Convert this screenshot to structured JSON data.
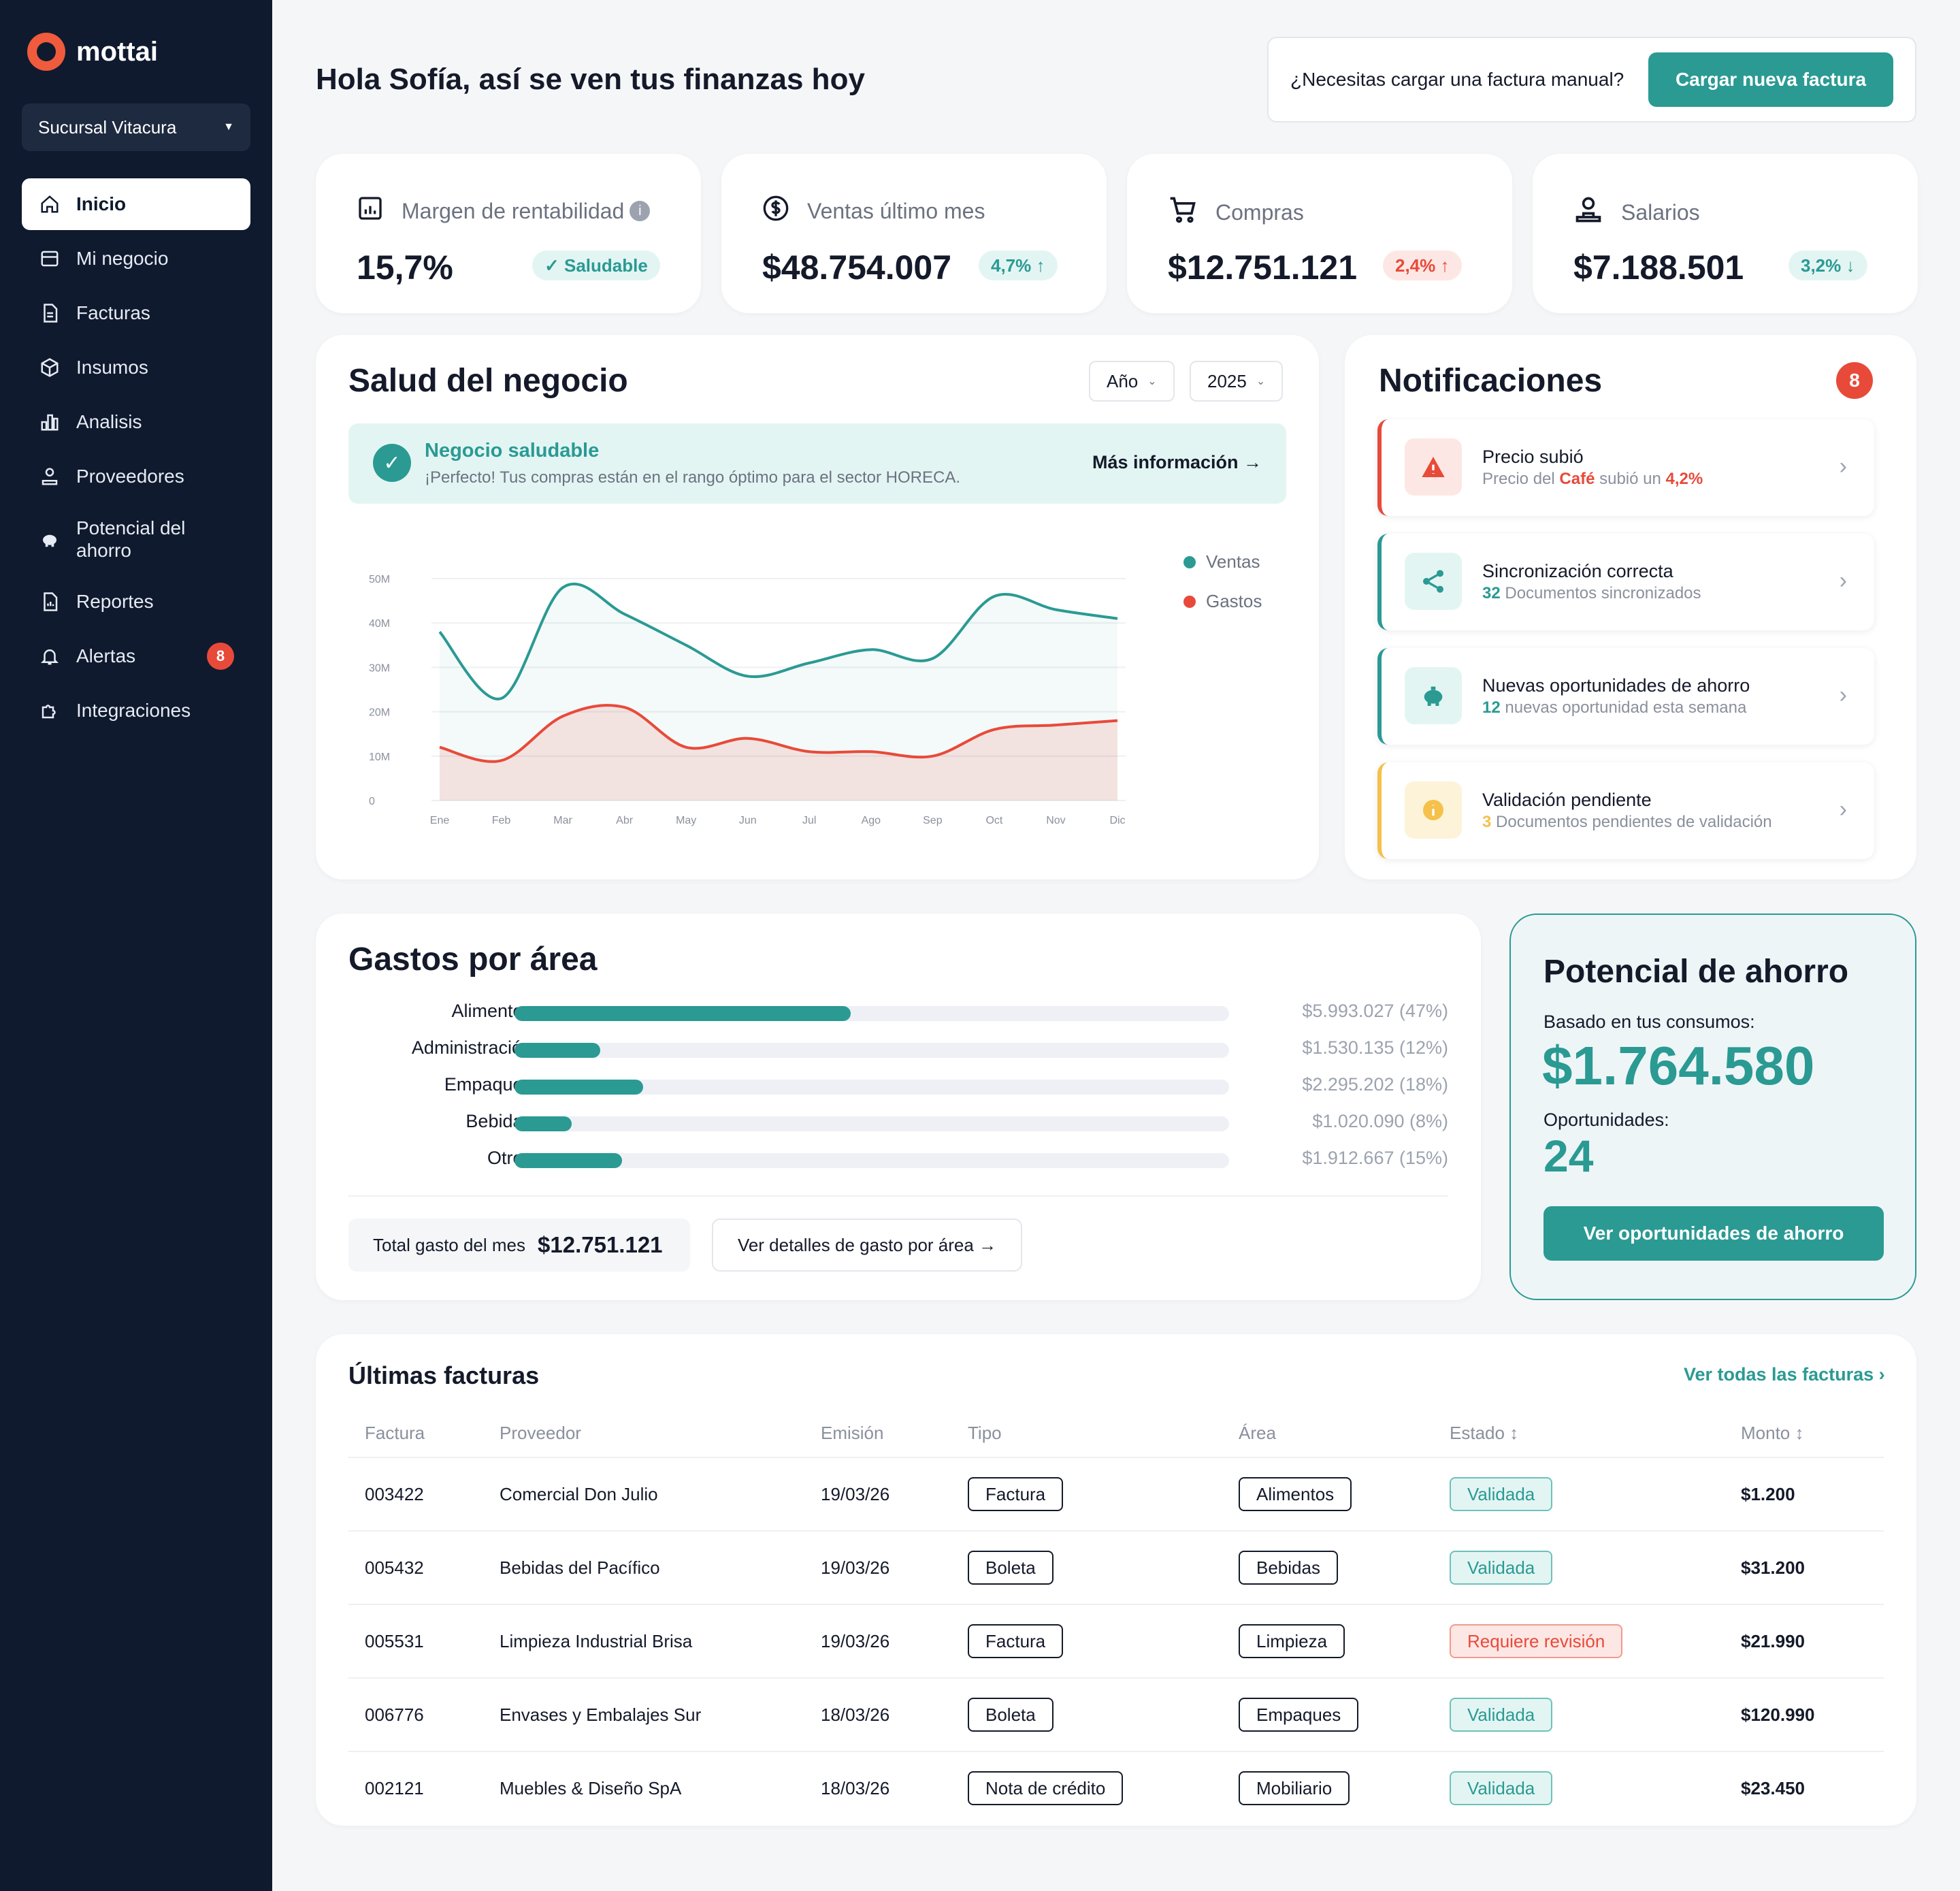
{
  "brand": {
    "name": "mottai"
  },
  "branch": {
    "label": "Sucursal Vitacura"
  },
  "nav": [
    {
      "label": "Inicio",
      "icon": "home-icon"
    },
    {
      "label": "Mi negocio",
      "icon": "store-icon"
    },
    {
      "label": "Facturas",
      "icon": "document-icon"
    },
    {
      "label": "Insumos",
      "icon": "box-icon"
    },
    {
      "label": "Analisis",
      "icon": "bar-chart-icon"
    },
    {
      "label": "Proveedores",
      "icon": "supplier-icon"
    },
    {
      "label": "Potencial del ahorro",
      "icon": "piggy-bank-icon"
    },
    {
      "label": "Reportes",
      "icon": "report-icon"
    },
    {
      "label": "Alertas",
      "icon": "bell-icon",
      "badge": "8"
    },
    {
      "label": "Integraciones",
      "icon": "puzzle-icon"
    }
  ],
  "header": {
    "greeting": "Hola Sofía, así se ven tus finanzas hoy",
    "upload_question": "¿Necesitas cargar una factura manual?",
    "upload_button": "Cargar nueva factura"
  },
  "kpis": [
    {
      "title": "Margen de rentabilidad",
      "value": "15,7%",
      "badge": "✓ Saludable",
      "tone": "green",
      "icon": "report-icon"
    },
    {
      "title": "Ventas último mes",
      "value": "$48.754.007",
      "badge": "4,7% ↑",
      "tone": "green",
      "icon": "dollar-icon"
    },
    {
      "title": "Compras",
      "value": "$12.751.121",
      "badge": "2,4% ↑",
      "tone": "red",
      "icon": "cart-icon"
    },
    {
      "title": "Salarios",
      "value": "$7.188.501",
      "badge": "3,2% ↓",
      "tone": "green",
      "icon": "people-icon"
    }
  ],
  "salud": {
    "title": "Salud del negocio",
    "period_select": "Año",
    "year_select": "2025",
    "status_title": "Negocio saludable",
    "status_text": "¡Perfecto! Tus compras están en el rango óptimo para el sector HORECA.",
    "more_link": "Más información →"
  },
  "chart_data": {
    "type": "area",
    "categories": [
      "Ene",
      "Feb",
      "Mar",
      "Abr",
      "May",
      "Jun",
      "Jul",
      "Ago",
      "Sep",
      "Oct",
      "Nov",
      "Dic"
    ],
    "y_ticks": [
      "50M",
      "40M",
      "30M",
      "20M",
      "10M",
      "0"
    ],
    "ylim": [
      0,
      50
    ],
    "series": [
      {
        "name": "Ventas",
        "color": "#2a9a93",
        "values": [
          38,
          23,
          48,
          42,
          35,
          28,
          31,
          34,
          32,
          46,
          43,
          41
        ]
      },
      {
        "name": "Gastos",
        "color": "#e84a3a",
        "values": [
          12,
          9,
          19,
          21,
          12,
          14,
          11,
          11,
          10,
          16,
          17,
          18
        ]
      }
    ],
    "grid": true,
    "legend": "top-right"
  },
  "notificaciones": {
    "title": "Notificaciones",
    "count": "8",
    "items": [
      {
        "title": "Precio subió",
        "sub_pre": "Precio del ",
        "sub_strong": "Café",
        "sub_mid": " subió un ",
        "sub_end": "4,2%",
        "accent": "#e84a3a",
        "icon_bg": "#fde7e4",
        "icon": "warning-icon"
      },
      {
        "title": "Sincronización correcta",
        "sub_num": "32",
        "sub_text": " Documentos sincronizados",
        "accent": "#2a9a93",
        "icon_bg": "#e3f5f3",
        "icon": "share-icon"
      },
      {
        "title": "Nuevas oportunidades de ahorro",
        "sub_num": "12",
        "sub_text": " nuevas oportunidad esta semana",
        "accent": "#2a9a93",
        "icon_bg": "#e3f5f3",
        "icon": "piggy-bank-icon"
      },
      {
        "title": "Validación pendiente",
        "sub_num": "3",
        "sub_text": " Documentos pendientes de validación",
        "accent": "#f5c14b",
        "icon_bg": "#fdf3d8",
        "icon": "info-icon"
      }
    ]
  },
  "gastos": {
    "title": "Gastos por área",
    "rows": [
      {
        "label": "Alimentos",
        "amount": "$5.993.027 (47%)",
        "pct": 47
      },
      {
        "label": "Administración",
        "amount": "$1.530.135 (12%)",
        "pct": 12
      },
      {
        "label": "Empaques",
        "amount": "$2.295.202 (18%)",
        "pct": 18
      },
      {
        "label": "Bebidas",
        "amount": "$1.020.090 (8%)",
        "pct": 8
      },
      {
        "label": "Otros",
        "amount": "$1.912.667 (15%)",
        "pct": 15
      }
    ],
    "total_label": "Total gasto del mes",
    "total_value": "$12.751.121",
    "details_button": "Ver detalles de gasto por área →"
  },
  "potencial": {
    "title": "Potencial de ahorro",
    "based_label": "Basado en tus consumos:",
    "amount": "$1.764.580",
    "opp_label": "Oportunidades:",
    "opp_value": "24",
    "button": "Ver oportunidades de ahorro"
  },
  "facturas": {
    "title": "Últimas facturas",
    "see_all": "Ver todas las facturas ›",
    "headers": [
      "Factura",
      "Proveedor",
      "Emisión",
      "Tipo",
      "Área",
      "Estado ↕",
      "Monto ↕"
    ],
    "rows": [
      {
        "factura": "003422",
        "proveedor": "Comercial Don Julio",
        "emision": "19/03/26",
        "tipo": "Factura",
        "area": "Alimentos",
        "estado": "Validada",
        "estado_tone": "ok",
        "monto": "$1.200"
      },
      {
        "factura": "005432",
        "proveedor": "Bebidas del Pacífico",
        "emision": "19/03/26",
        "tipo": "Boleta",
        "area": "Bebidas",
        "estado": "Validada",
        "estado_tone": "ok",
        "monto": "$31.200"
      },
      {
        "factura": "005531",
        "proveedor": "Limpieza Industrial Brisa",
        "emision": "19/03/26",
        "tipo": "Factura",
        "area": "Limpieza",
        "estado": "Requiere revisión",
        "estado_tone": "warn",
        "monto": "$21.990"
      },
      {
        "factura": "006776",
        "proveedor": "Envases y Embalajes Sur",
        "emision": "18/03/26",
        "tipo": "Boleta",
        "area": "Empaques",
        "estado": "Validada",
        "estado_tone": "ok",
        "monto": "$120.990"
      },
      {
        "factura": "002121",
        "proveedor": "Muebles & Diseño SpA",
        "emision": "18/03/26",
        "tipo": "Nota de crédito",
        "area": "Mobiliario",
        "estado": "Validada",
        "estado_tone": "ok",
        "monto": "$23.450"
      }
    ]
  }
}
